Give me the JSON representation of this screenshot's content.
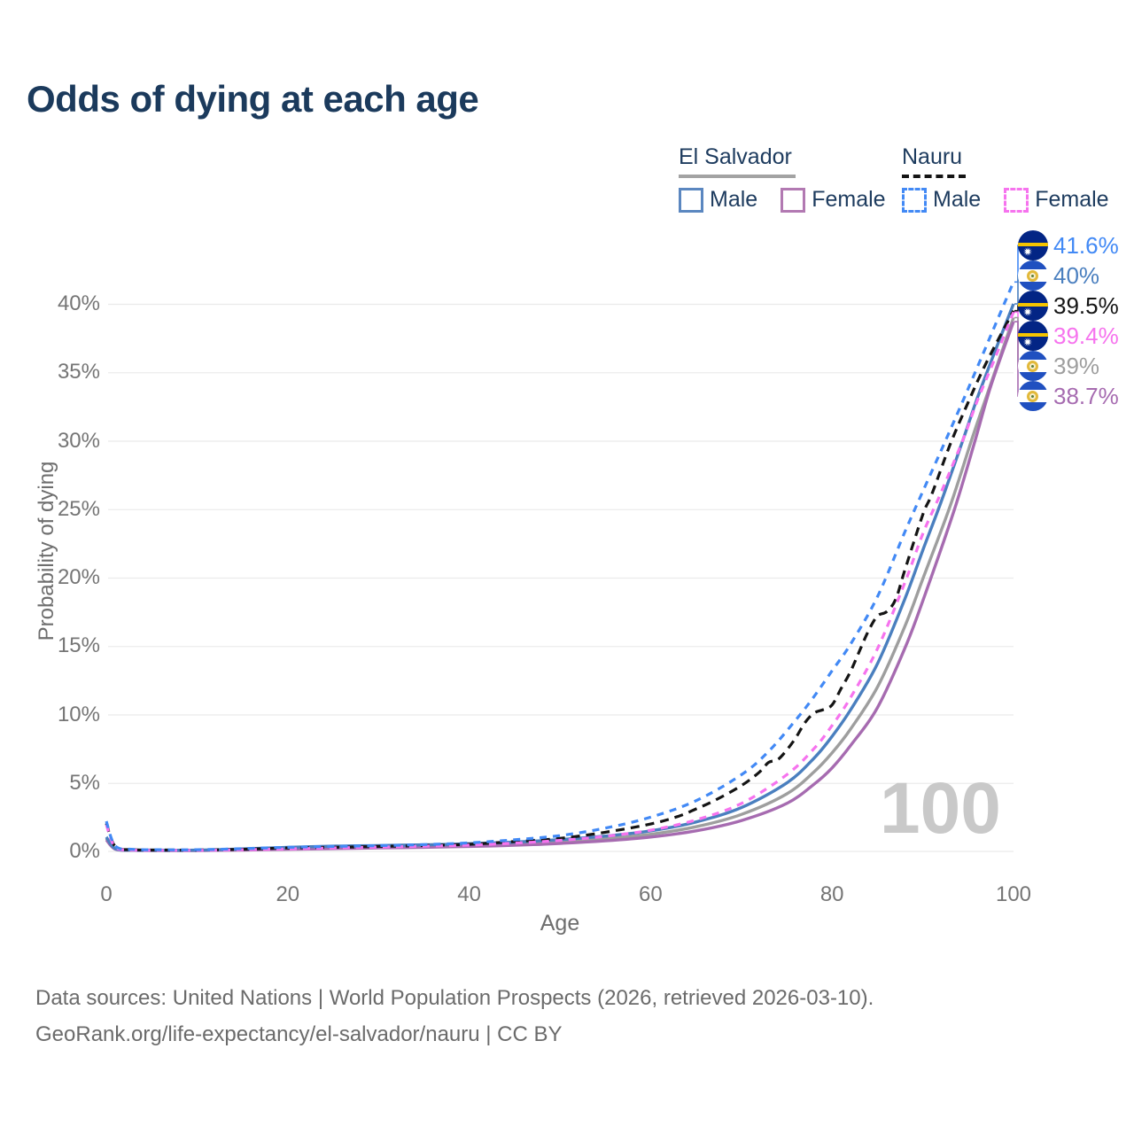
{
  "title": "Odds of dying at each age",
  "watermark_age": "100",
  "legend": {
    "groups": [
      {
        "name": "El Salvador",
        "line_style": "solid",
        "line_color": "#a3a3a3",
        "items": [
          {
            "label": "Male",
            "color": "#5b87c0",
            "dashed": false
          },
          {
            "label": "Female",
            "color": "#b279b2",
            "dashed": false
          }
        ]
      },
      {
        "name": "Nauru",
        "line_style": "dashed",
        "line_color": "#141414",
        "items": [
          {
            "label": "Male",
            "color": "#4289f5",
            "dashed": true
          },
          {
            "label": "Female",
            "color": "#f673ee",
            "dashed": true
          }
        ]
      }
    ]
  },
  "axes": {
    "xlabel": "Age",
    "ylabel": "Probability of dying",
    "x_ticks": [
      "0",
      "20",
      "40",
      "60",
      "80",
      "100"
    ],
    "y_ticks": [
      "0%",
      "5%",
      "10%",
      "15%",
      "20%",
      "25%",
      "30%",
      "35%",
      "40%"
    ]
  },
  "footer": {
    "line1": "Data sources: United Nations | World Population Prospects (2026, retrieved 2026-03-10).",
    "line2": "GeoRank.org/life-expectancy/el-salvador/nauru | CC BY"
  },
  "chart_data": {
    "type": "line",
    "title": "Odds of dying at each age",
    "xlabel": "Age",
    "ylabel": "Probability of dying",
    "x_range": [
      0,
      100
    ],
    "y_range_percent": [
      0,
      43
    ],
    "grid": "horizontal gridlines every 5%",
    "legend_position": "top-right",
    "units": "percent probability of dying at each age",
    "series": [
      {
        "id": "el-salvador-total",
        "country": "El Salvador",
        "group": "All",
        "color": "#9e9e9e",
        "dash": false,
        "end_label": "39%",
        "flag": "elsalvador",
        "points": [
          [
            0,
            0.95
          ],
          [
            1,
            0.18
          ],
          [
            3,
            0.09
          ],
          [
            6,
            0.07
          ],
          [
            10,
            0.07
          ],
          [
            15,
            0.13
          ],
          [
            20,
            0.22
          ],
          [
            25,
            0.28
          ],
          [
            30,
            0.33
          ],
          [
            35,
            0.39
          ],
          [
            40,
            0.45
          ],
          [
            45,
            0.56
          ],
          [
            50,
            0.7
          ],
          [
            55,
            0.92
          ],
          [
            60,
            1.25
          ],
          [
            65,
            1.8
          ],
          [
            70,
            2.7
          ],
          [
            75,
            4.2
          ],
          [
            78,
            5.8
          ],
          [
            80,
            7.2
          ],
          [
            82,
            8.9
          ],
          [
            85,
            12
          ],
          [
            88,
            16.4
          ],
          [
            90,
            19.9
          ],
          [
            93,
            25.2
          ],
          [
            95.5,
            30.3
          ],
          [
            97,
            33.2
          ],
          [
            100,
            39
          ]
        ]
      },
      {
        "id": "el-salvador-female",
        "country": "El Salvador",
        "group": "Female",
        "color": "#a66bb0",
        "dash": false,
        "end_label": "38.7%",
        "flag": "elsalvador",
        "points": [
          [
            0,
            0.85
          ],
          [
            1,
            0.16
          ],
          [
            3,
            0.08
          ],
          [
            6,
            0.06
          ],
          [
            10,
            0.06
          ],
          [
            15,
            0.1
          ],
          [
            20,
            0.15
          ],
          [
            25,
            0.2
          ],
          [
            30,
            0.25
          ],
          [
            35,
            0.3
          ],
          [
            40,
            0.36
          ],
          [
            45,
            0.45
          ],
          [
            50,
            0.58
          ],
          [
            55,
            0.77
          ],
          [
            60,
            1.05
          ],
          [
            65,
            1.5
          ],
          [
            70,
            2.25
          ],
          [
            75,
            3.5
          ],
          [
            78,
            4.9
          ],
          [
            80,
            6.1
          ],
          [
            82,
            7.7
          ],
          [
            85,
            10.5
          ],
          [
            88,
            14.8
          ],
          [
            90,
            18.3
          ],
          [
            93.5,
            25
          ],
          [
            95.8,
            30.1
          ],
          [
            97.5,
            34
          ],
          [
            100,
            38.7
          ]
        ]
      },
      {
        "id": "el-salvador-male",
        "country": "El Salvador",
        "group": "Male",
        "color": "#4a7fbf",
        "dash": false,
        "end_label": "40%",
        "flag": "elsalvador",
        "points": [
          [
            0,
            1.05
          ],
          [
            1,
            0.2
          ],
          [
            3,
            0.1
          ],
          [
            6,
            0.09
          ],
          [
            10,
            0.09
          ],
          [
            15,
            0.18
          ],
          [
            20,
            0.3
          ],
          [
            25,
            0.38
          ],
          [
            30,
            0.43
          ],
          [
            35,
            0.48
          ],
          [
            40,
            0.56
          ],
          [
            45,
            0.68
          ],
          [
            50,
            0.86
          ],
          [
            55,
            1.12
          ],
          [
            60,
            1.5
          ],
          [
            65,
            2.15
          ],
          [
            70,
            3.2
          ],
          [
            75,
            5.0
          ],
          [
            78,
            6.8
          ],
          [
            80,
            8.4
          ],
          [
            82,
            10.3
          ],
          [
            85,
            13.7
          ],
          [
            88,
            18.4
          ],
          [
            90,
            22
          ],
          [
            92,
            25.5
          ],
          [
            94.5,
            30.2
          ],
          [
            96,
            33.1
          ],
          [
            98,
            36.6
          ],
          [
            100,
            40
          ]
        ]
      },
      {
        "id": "nauru-total",
        "country": "Nauru",
        "group": "All",
        "color": "#141414",
        "dash": true,
        "end_label": "39.5%",
        "flag": "nauru",
        "points": [
          [
            0,
            2.05
          ],
          [
            1,
            0.35
          ],
          [
            3,
            0.12
          ],
          [
            6,
            0.1
          ],
          [
            10,
            0.1
          ],
          [
            15,
            0.15
          ],
          [
            20,
            0.25
          ],
          [
            25,
            0.3
          ],
          [
            30,
            0.36
          ],
          [
            35,
            0.43
          ],
          [
            40,
            0.52
          ],
          [
            45,
            0.72
          ],
          [
            50,
            0.95
          ],
          [
            55,
            1.4
          ],
          [
            60,
            2.0
          ],
          [
            63,
            2.55
          ],
          [
            65,
            3.1
          ],
          [
            67,
            3.7
          ],
          [
            70,
            4.8
          ],
          [
            72,
            5.8
          ],
          [
            73,
            6.5
          ],
          [
            74,
            6.7
          ],
          [
            75,
            7.4
          ],
          [
            76,
            8.3
          ],
          [
            77,
            9.4
          ],
          [
            78,
            10.1
          ],
          [
            79,
            10.35
          ],
          [
            80,
            10.7
          ],
          [
            81,
            11.9
          ],
          [
            82,
            13.1
          ],
          [
            83,
            14.6
          ],
          [
            84,
            16.1
          ],
          [
            85,
            17.2
          ],
          [
            86,
            17.5
          ],
          [
            87,
            18.4
          ],
          [
            88,
            20.5
          ],
          [
            90,
            24.6
          ],
          [
            91,
            26.1
          ],
          [
            93,
            29.7
          ],
          [
            95,
            32.8
          ],
          [
            97,
            35.7
          ],
          [
            100,
            39.5
          ]
        ]
      },
      {
        "id": "nauru-female",
        "country": "Nauru",
        "group": "Female",
        "color": "#f673ee",
        "dash": true,
        "end_label": "39.4%",
        "flag": "nauru",
        "points": [
          [
            0,
            1.95
          ],
          [
            1,
            0.3
          ],
          [
            3,
            0.1
          ],
          [
            6,
            0.08
          ],
          [
            10,
            0.08
          ],
          [
            15,
            0.12
          ],
          [
            20,
            0.18
          ],
          [
            25,
            0.25
          ],
          [
            30,
            0.31
          ],
          [
            35,
            0.38
          ],
          [
            40,
            0.46
          ],
          [
            45,
            0.6
          ],
          [
            50,
            0.8
          ],
          [
            55,
            1.1
          ],
          [
            60,
            1.55
          ],
          [
            65,
            2.3
          ],
          [
            70,
            3.5
          ],
          [
            75,
            5.6
          ],
          [
            78,
            7.5
          ],
          [
            80,
            9.2
          ],
          [
            82,
            11.2
          ],
          [
            85,
            14.8
          ],
          [
            88,
            19.6
          ],
          [
            90,
            23.2
          ],
          [
            92,
            26.2
          ],
          [
            94.5,
            30.2
          ],
          [
            96,
            32.9
          ],
          [
            98,
            36.1
          ],
          [
            100,
            39.4
          ]
        ]
      },
      {
        "id": "nauru-male",
        "country": "Nauru",
        "group": "Male",
        "color": "#4289f5",
        "dash": true,
        "end_label": "41.6%",
        "flag": "nauru",
        "points": [
          [
            0,
            2.2
          ],
          [
            1,
            0.4
          ],
          [
            3,
            0.15
          ],
          [
            6,
            0.12
          ],
          [
            10,
            0.12
          ],
          [
            15,
            0.2
          ],
          [
            20,
            0.3
          ],
          [
            25,
            0.36
          ],
          [
            30,
            0.42
          ],
          [
            35,
            0.5
          ],
          [
            40,
            0.62
          ],
          [
            45,
            0.85
          ],
          [
            50,
            1.15
          ],
          [
            55,
            1.7
          ],
          [
            60,
            2.5
          ],
          [
            65,
            3.7
          ],
          [
            70,
            5.6
          ],
          [
            73,
            7.3
          ],
          [
            76,
            9.6
          ],
          [
            78,
            11.3
          ],
          [
            80,
            13.2
          ],
          [
            82,
            15.1
          ],
          [
            85,
            18.6
          ],
          [
            88,
            23.3
          ],
          [
            90,
            26.3
          ],
          [
            92.5,
            30
          ],
          [
            95,
            33.8
          ],
          [
            97.5,
            37.7
          ],
          [
            100,
            41.6
          ]
        ]
      }
    ]
  }
}
